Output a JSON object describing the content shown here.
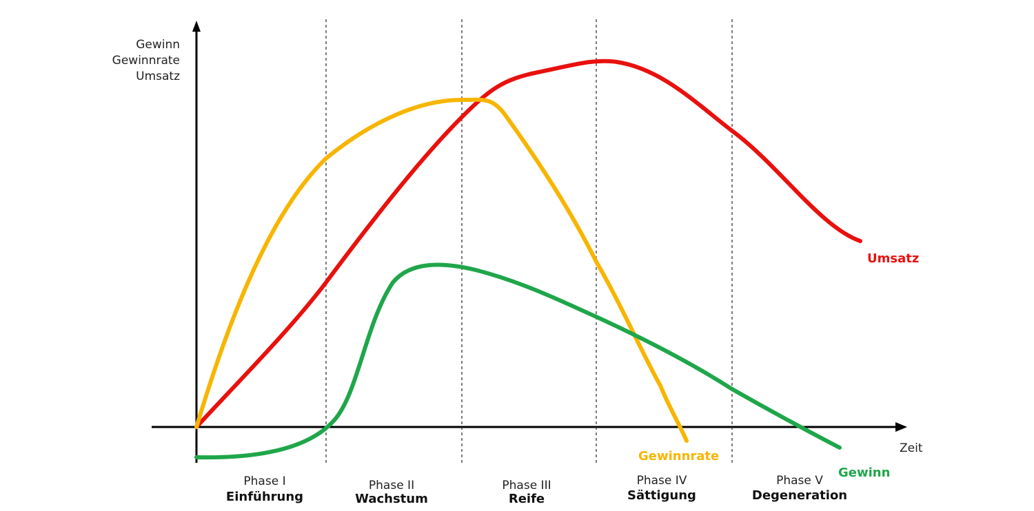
{
  "axes": {
    "y_labels": [
      "Gewinn",
      "Gewinnrate",
      "Umsatz"
    ],
    "x_label": "Zeit"
  },
  "phases": [
    {
      "number": "Phase I",
      "name": "Einführung"
    },
    {
      "number": "Phase II",
      "name": "Wachstum"
    },
    {
      "number": "Phase III",
      "name": "Reife"
    },
    {
      "number": "Phase IV",
      "name": "Sättigung"
    },
    {
      "number": "Phase V",
      "name": "Degeneration"
    }
  ],
  "curves": {
    "umsatz": {
      "label": "Umsatz",
      "color": "#e8110d"
    },
    "gewinnrate": {
      "label": "Gewinnrate",
      "color": "#f7b500"
    },
    "gewinn": {
      "label": "Gewinn",
      "color": "#1fa64a"
    }
  }
}
